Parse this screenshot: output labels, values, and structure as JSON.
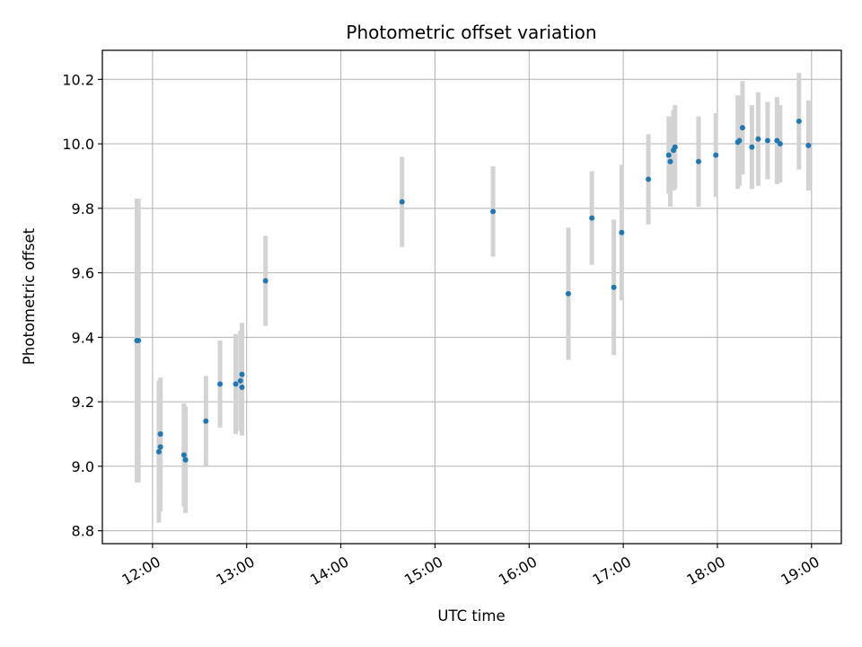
{
  "chart_data": {
    "type": "scatter",
    "title": "Photometric offset variation",
    "xlabel": "UTC time",
    "ylabel": "Photometric offset",
    "x_ticks": [
      "12:00",
      "13:00",
      "14:00",
      "15:00",
      "16:00",
      "17:00",
      "18:00",
      "19:00"
    ],
    "y_ticks": [
      "8.8",
      "9.0",
      "9.2",
      "9.4",
      "9.6",
      "9.8",
      "10.0",
      "10.2"
    ],
    "xlim": [
      "11:28",
      "19:19"
    ],
    "ylim": [
      8.76,
      10.29
    ],
    "grid": true,
    "errorbar_color": "#d3d3d3",
    "point_color": "#1f77b4",
    "points": [
      {
        "x": "11:50",
        "y": 9.39,
        "yerr": 0.44
      },
      {
        "x": "11:51",
        "y": 9.39,
        "yerr": 0.44
      },
      {
        "x": "12:04",
        "y": 9.045,
        "yerr": 0.22
      },
      {
        "x": "12:05",
        "y": 9.06,
        "yerr": 0.2
      },
      {
        "x": "12:05",
        "y": 9.1,
        "yerr": 0.175
      },
      {
        "x": "12:20",
        "y": 9.035,
        "yerr": 0.16
      },
      {
        "x": "12:21",
        "y": 9.02,
        "yerr": 0.165
      },
      {
        "x": "12:34",
        "y": 9.14,
        "yerr": 0.14
      },
      {
        "x": "12:43",
        "y": 9.255,
        "yerr": 0.135
      },
      {
        "x": "12:53",
        "y": 9.255,
        "yerr": 0.155
      },
      {
        "x": "12:56",
        "y": 9.265,
        "yerr": 0.155
      },
      {
        "x": "12:57",
        "y": 9.245,
        "yerr": 0.15
      },
      {
        "x": "12:57",
        "y": 9.285,
        "yerr": 0.16
      },
      {
        "x": "13:12",
        "y": 9.575,
        "yerr": 0.14
      },
      {
        "x": "14:39",
        "y": 9.82,
        "yerr": 0.14
      },
      {
        "x": "15:37",
        "y": 9.79,
        "yerr": 0.14
      },
      {
        "x": "16:25",
        "y": 9.535,
        "yerr": 0.205
      },
      {
        "x": "16:40",
        "y": 9.77,
        "yerr": 0.145
      },
      {
        "x": "16:54",
        "y": 9.555,
        "yerr": 0.21
      },
      {
        "x": "16:59",
        "y": 9.725,
        "yerr": 0.21
      },
      {
        "x": "17:16",
        "y": 9.89,
        "yerr": 0.14
      },
      {
        "x": "17:29",
        "y": 9.965,
        "yerr": 0.12
      },
      {
        "x": "17:30",
        "y": 9.945,
        "yerr": 0.14
      },
      {
        "x": "17:32",
        "y": 9.98,
        "yerr": 0.125
      },
      {
        "x": "17:33",
        "y": 9.99,
        "yerr": 0.13
      },
      {
        "x": "17:48",
        "y": 9.945,
        "yerr": 0.14
      },
      {
        "x": "17:59",
        "y": 9.965,
        "yerr": 0.13
      },
      {
        "x": "18:13",
        "y": 10.005,
        "yerr": 0.145
      },
      {
        "x": "18:14",
        "y": 10.01,
        "yerr": 0.14
      },
      {
        "x": "18:16",
        "y": 10.05,
        "yerr": 0.145
      },
      {
        "x": "18:22",
        "y": 9.99,
        "yerr": 0.13
      },
      {
        "x": "18:26",
        "y": 10.015,
        "yerr": 0.145
      },
      {
        "x": "18:32",
        "y": 10.01,
        "yerr": 0.12
      },
      {
        "x": "18:38",
        "y": 10.01,
        "yerr": 0.135
      },
      {
        "x": "18:40",
        "y": 10.0,
        "yerr": 0.12
      },
      {
        "x": "18:52",
        "y": 10.07,
        "yerr": 0.15
      },
      {
        "x": "18:58",
        "y": 9.995,
        "yerr": 0.14
      }
    ]
  }
}
